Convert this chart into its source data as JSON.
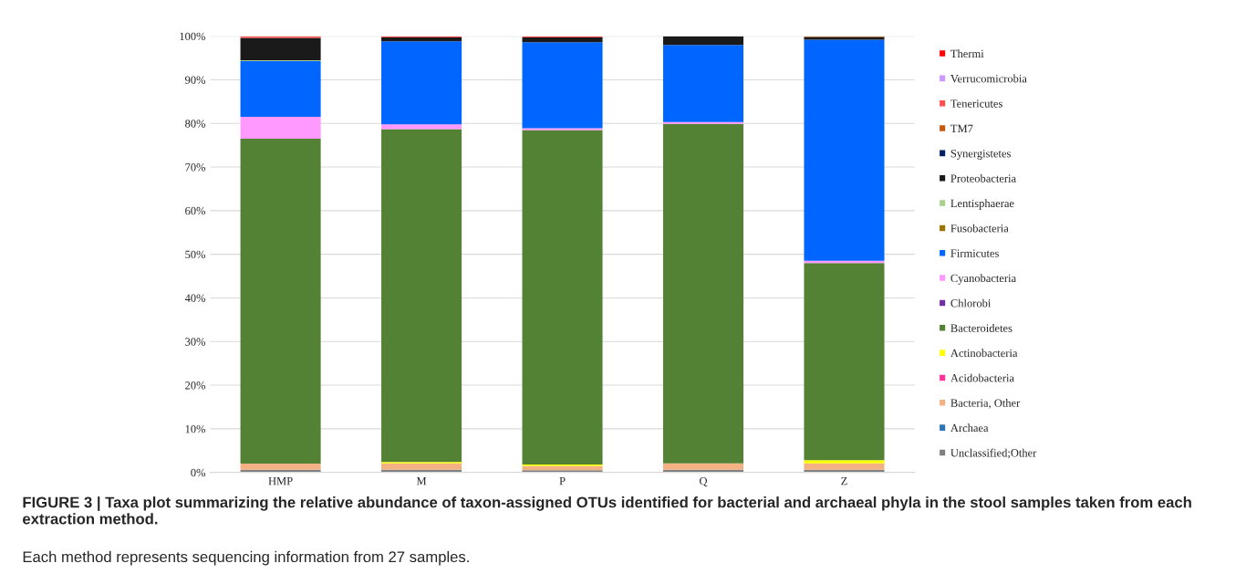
{
  "chart_data": {
    "type": "bar",
    "stacked": true,
    "title": "FIGURE 3 | Taxa plot summarizing the relative abundance of taxon-assigned OTUs identified for bacterial and archaeal phyla in the stool samples taken from each extraction method.",
    "annotations": [
      "Each method represents sequencing information from 27 samples."
    ],
    "categories": [
      "HMP",
      "M",
      "P",
      "Q",
      "Z"
    ],
    "series": [
      {
        "name": "Unclassified;Other",
        "color": "#808080",
        "values": [
          0.6,
          0.6,
          0.5,
          0.6,
          0.6
        ]
      },
      {
        "name": "Archaea",
        "color": "#2e75b6",
        "values": [
          0,
          0,
          0,
          0,
          0
        ]
      },
      {
        "name": "Bacteria, Other",
        "color": "#f4b183",
        "values": [
          1.4,
          1.5,
          1.0,
          1.5,
          1.5
        ]
      },
      {
        "name": "Acidobacteria",
        "color": "#ff3399",
        "values": [
          0,
          0,
          0,
          0,
          0
        ]
      },
      {
        "name": "Actinobacteria",
        "color": "#ffff00",
        "values": [
          0,
          0.3,
          0.3,
          0,
          0.7
        ]
      },
      {
        "name": "Bacteroidetes",
        "color": "#548235",
        "values": [
          74.5,
          76.3,
          76.7,
          77.8,
          45.2
        ]
      },
      {
        "name": "Chlorobi",
        "color": "#7030a0",
        "values": [
          0,
          0,
          0,
          0,
          0
        ]
      },
      {
        "name": "Cyanobacteria",
        "color": "#ff99ff",
        "values": [
          5.0,
          1.1,
          0.4,
          0.4,
          0.5
        ]
      },
      {
        "name": "Firmicutes",
        "color": "#0066ff",
        "values": [
          12.8,
          19.0,
          19.7,
          17.7,
          50.7
        ]
      },
      {
        "name": "Fusobacteria",
        "color": "#997300",
        "values": [
          0,
          0,
          0,
          0,
          0
        ]
      },
      {
        "name": "Lentisphaerae",
        "color": "#a9d18e",
        "values": [
          0.2,
          0,
          0,
          0,
          0
        ]
      },
      {
        "name": "Proteobacteria",
        "color": "#1a1a1a",
        "values": [
          5.1,
          0.9,
          1.1,
          2.0,
          0.6
        ]
      },
      {
        "name": "Synergistetes",
        "color": "#002060",
        "values": [
          0,
          0,
          0,
          0,
          0
        ]
      },
      {
        "name": "TM7",
        "color": "#c55a11",
        "values": [
          0,
          0,
          0,
          0,
          0.2
        ]
      },
      {
        "name": "Tenericutes",
        "color": "#ff5050",
        "values": [
          0.4,
          0.3,
          0.3,
          0,
          0
        ]
      },
      {
        "name": "Verrucomicrobia",
        "color": "#cc99ff",
        "values": [
          0,
          0,
          0,
          0,
          0
        ]
      },
      {
        "name": "Thermi",
        "color": "#ff0000",
        "values": [
          0,
          0,
          0,
          0,
          0
        ]
      }
    ],
    "ylim": [
      0,
      100
    ],
    "yticks": [
      {
        "value": 0,
        "label": "0%"
      },
      {
        "value": 10,
        "label": "10%"
      },
      {
        "value": 20,
        "label": "20%"
      },
      {
        "value": 30,
        "label": "30%"
      },
      {
        "value": 40,
        "label": "40%"
      },
      {
        "value": 50,
        "label": "50%"
      },
      {
        "value": 60,
        "label": "60%"
      },
      {
        "value": 70,
        "label": "70%"
      },
      {
        "value": 80,
        "label": "80%"
      },
      {
        "value": 90,
        "label": "90%"
      },
      {
        "value": 100,
        "label": "100%"
      }
    ],
    "grid": "y",
    "legend": "right"
  }
}
